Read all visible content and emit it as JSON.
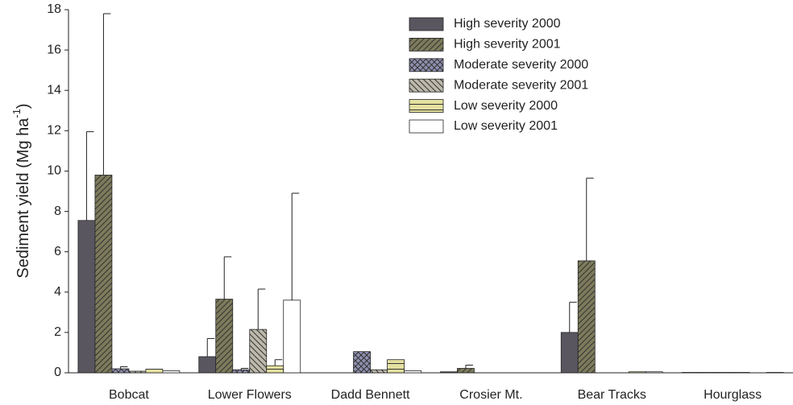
{
  "chart_data": {
    "type": "bar",
    "y_label": {
      "text": "Sediment yield (Mg ha",
      "superscript": "-1",
      "suffix": ")"
    },
    "categories": [
      "Bobcat",
      "Lower Flowers",
      "Dadd Bennett",
      "Crosier Mt.",
      "Bear Tracks",
      "Hourglass"
    ],
    "series": [
      {
        "name": "High severity 2000",
        "color": "#5a5660",
        "pattern": "solid",
        "values": [
          7.55,
          0.8,
          null,
          0.05,
          2.0,
          0.02
        ],
        "errors": [
          4.4,
          0.9,
          null,
          null,
          1.5,
          null
        ]
      },
      {
        "name": "High severity 2001",
        "color": "#7d7b5b",
        "pattern": "diagonal",
        "values": [
          9.8,
          3.65,
          null,
          0.22,
          5.55,
          0.02
        ],
        "errors": [
          8.0,
          2.1,
          null,
          0.16,
          4.1,
          null
        ]
      },
      {
        "name": "Moderate severity 2000",
        "color": "#8f8fb0",
        "pattern": "crosshatch",
        "values": [
          0.2,
          0.15,
          1.05,
          null,
          null,
          0.02
        ],
        "errors": [
          0.1,
          0.07,
          null,
          null,
          null,
          null
        ]
      },
      {
        "name": "Moderate severity 2001",
        "color": "#bdb9ab",
        "pattern": "backdiagonal",
        "values": [
          0.08,
          2.15,
          0.15,
          null,
          null,
          0.02
        ],
        "errors": [
          null,
          2.0,
          null,
          null,
          null,
          null
        ]
      },
      {
        "name": "Low severity 2000",
        "color": "#e4e0a0",
        "pattern": "horizontal",
        "values": [
          0.18,
          0.35,
          0.65,
          null,
          0.05,
          null
        ],
        "errors": [
          null,
          0.3,
          null,
          null,
          null,
          null
        ]
      },
      {
        "name": "Low severity 2001",
        "color": "#ffffff",
        "pattern": "solid",
        "values": [
          0.1,
          3.6,
          0.1,
          null,
          0.05,
          0.02
        ],
        "errors": [
          null,
          5.3,
          null,
          null,
          null,
          null
        ]
      }
    ],
    "ylim": [
      0,
      18
    ],
    "yticks": [
      0,
      2,
      4,
      6,
      8,
      10,
      12,
      14,
      16,
      18
    ],
    "grid": false,
    "legend": "upper-center"
  }
}
